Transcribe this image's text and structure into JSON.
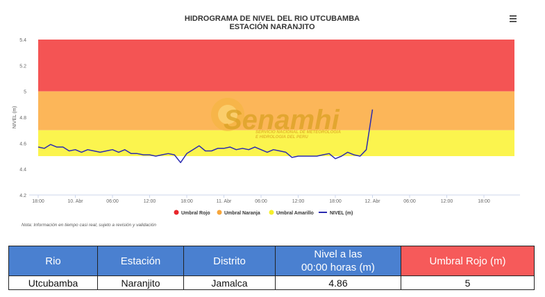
{
  "chart_data": {
    "type": "line",
    "title": "HIDROGRAMA DE NIVEL DEL RIO UTCUBAMBA",
    "subtitle": "ESTACIÓN NARANJITO",
    "ylabel": "NIVEL (m)",
    "xlabel": "",
    "ylim": [
      4.2,
      5.4
    ],
    "yticks": [
      "5.4",
      "5.2",
      "5",
      "4.8",
      "4.6",
      "4.4",
      "4.2"
    ],
    "yticks_values": [
      5.4,
      5.2,
      5.0,
      4.8,
      4.6,
      4.4,
      4.2
    ],
    "xticks": [
      "18:00",
      "10. Abr",
      "06:00",
      "12:00",
      "18:00",
      "11. Abr",
      "06:00",
      "12:00",
      "18:00",
      "12. Abr",
      "06:00",
      "12:00",
      "18:00"
    ],
    "xlim_hours": [
      0,
      78
    ],
    "grid": false,
    "legend_position": "bottom-center",
    "bands": [
      {
        "name": "Umbral Rojo",
        "from": 5.0,
        "to": 5.4,
        "color": "#f45454",
        "legend_color": "#e8262b"
      },
      {
        "name": "Umbral Naranja",
        "from": 4.7,
        "to": 5.0,
        "color": "#fcb659",
        "legend_color": "#f7a63b"
      },
      {
        "name": "Umbral Amarillo",
        "from": 4.5,
        "to": 4.7,
        "color": "#fbf44e",
        "legend_color": "#f5ef2c"
      }
    ],
    "series": [
      {
        "name": "NIVEL (m)",
        "color": "#2b2bb0",
        "x": [
          0,
          1,
          2,
          3,
          4,
          5,
          6,
          7,
          8,
          9,
          10,
          11,
          12,
          13,
          14,
          15,
          16,
          17,
          18,
          19,
          20,
          21,
          22,
          23,
          24,
          25,
          26,
          27,
          28,
          29,
          30,
          31,
          32,
          33,
          34,
          35,
          36,
          37,
          38,
          39,
          40,
          41,
          42,
          43,
          44,
          45,
          46,
          47,
          48,
          49,
          50,
          51,
          52,
          53,
          54
        ],
        "y": [
          4.57,
          4.56,
          4.59,
          4.57,
          4.57,
          4.54,
          4.55,
          4.53,
          4.55,
          4.54,
          4.53,
          4.54,
          4.55,
          4.53,
          4.55,
          4.52,
          4.52,
          4.51,
          4.51,
          4.5,
          4.51,
          4.52,
          4.51,
          4.45,
          4.52,
          4.55,
          4.58,
          4.54,
          4.54,
          4.56,
          4.56,
          4.57,
          4.55,
          4.56,
          4.55,
          4.57,
          4.55,
          4.53,
          4.55,
          4.54,
          4.53,
          4.49,
          4.5,
          4.5,
          4.5,
          4.5,
          4.51,
          4.52,
          4.48,
          4.5,
          4.53,
          4.51,
          4.5,
          4.55,
          4.86
        ]
      }
    ],
    "note": "Nota: Información en tiempo casi real, sujeto a revisión y validación",
    "watermark": {
      "brand": "Senamhi",
      "line1": "SERVICIO NACIONAL DE METEOROLOGÍA",
      "line2": "E HIDROLOGÍA DEL PERÚ"
    }
  },
  "icons": {
    "menu": "hamburger-menu-icon"
  },
  "table": {
    "headers": {
      "rio": "Rio",
      "estacion": "Estación",
      "distrito": "Distrito",
      "nivel_line1": "Nivel a las",
      "nivel_line2": "00:00 horas (m)",
      "umbral": "Umbral Rojo (m)"
    },
    "row": {
      "rio": "Utcubamba",
      "estacion": "Naranjito",
      "distrito": "Jamalca",
      "nivel": "4.86",
      "umbral": "5"
    }
  }
}
